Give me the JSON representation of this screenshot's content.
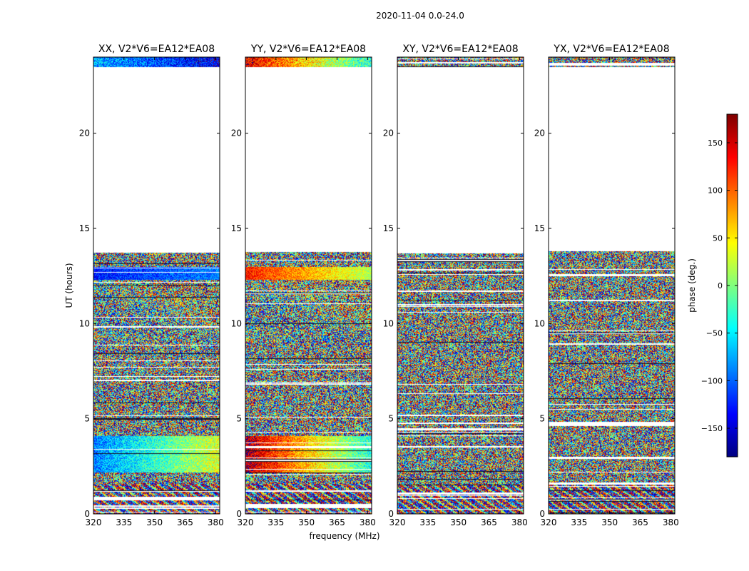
{
  "chart_data": {
    "type": "heatmap",
    "title": "2020-11-04 0.0-24.0",
    "xlabel": "frequency (MHz)",
    "ylabel": "UT (hours)",
    "xlim": [
      320,
      382
    ],
    "ylim": [
      0,
      24
    ],
    "xticks": [
      "320",
      "335",
      "350",
      "365",
      "380"
    ],
    "yticks": [
      "0",
      "5",
      "10",
      "15",
      "20"
    ],
    "panels": [
      {
        "name": "XX",
        "title": "XX, V2*V6=EA12*EA08",
        "structure": "coherent"
      },
      {
        "name": "YY",
        "title": "YY, V2*V6=EA12*EA08",
        "structure": "coherent"
      },
      {
        "name": "XY",
        "title": "XY, V2*V6=EA12*EA08",
        "structure": "noise"
      },
      {
        "name": "YX",
        "title": "YX, V2*V6=EA12*EA08",
        "structure": "noise"
      }
    ],
    "data_ranges_hours": [
      [
        0.0,
        13.8
      ],
      [
        23.5,
        24.0
      ]
    ],
    "colorbar": {
      "label": "phase (deg.)",
      "range": [
        -180,
        180
      ],
      "ticks": [
        "150",
        "100",
        "50",
        "0",
        "−50",
        "−100",
        "−150"
      ],
      "tick_values": [
        150,
        100,
        50,
        0,
        -50,
        -100,
        -150
      ],
      "colormap": "jet"
    }
  }
}
